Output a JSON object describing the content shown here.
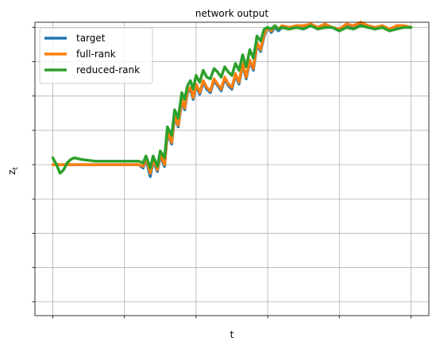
{
  "chart_data": {
    "type": "line",
    "title": "network output",
    "xlabel": "t",
    "ylabel": "z",
    "ylabel_subscript": "t",
    "grid": true,
    "legend_placement": "top-left",
    "xlim": [
      -0.25,
      5.25
    ],
    "ylim": [
      -4.4,
      4.15
    ],
    "xticks": [
      0,
      1,
      2,
      3,
      4,
      5
    ],
    "yticks": [
      -4,
      -3,
      -2,
      -1,
      0,
      1,
      2,
      3,
      4
    ],
    "series": [
      {
        "name": "target",
        "color": "#1f77b4",
        "x": [
          0,
          0.1,
          0.3,
          0.6,
          1.0,
          1.2,
          1.26,
          1.3,
          1.36,
          1.4,
          1.46,
          1.5,
          1.56,
          1.6,
          1.66,
          1.7,
          1.75,
          1.8,
          1.84,
          1.88,
          1.92,
          1.96,
          2.0,
          2.05,
          2.1,
          2.15,
          2.2,
          2.25,
          2.3,
          2.35,
          2.4,
          2.45,
          2.5,
          2.55,
          2.6,
          2.65,
          2.7,
          2.75,
          2.8,
          2.85,
          2.9,
          2.95,
          3.0,
          3.05,
          3.1,
          3.15,
          3.2,
          3.3,
          3.4,
          3.5,
          3.6,
          3.7,
          3.8,
          3.9,
          4.0,
          4.1,
          4.2,
          4.3,
          4.4,
          4.5,
          4.6,
          4.7,
          4.8,
          4.9,
          5.0
        ],
        "y": [
          0.0,
          0.0,
          0.0,
          0.0,
          0.0,
          0.0,
          -0.1,
          0.15,
          -0.35,
          0.1,
          -0.2,
          0.25,
          -0.05,
          0.9,
          0.6,
          1.4,
          1.1,
          1.85,
          1.6,
          2.1,
          2.2,
          1.9,
          2.3,
          2.05,
          2.4,
          2.2,
          2.1,
          2.45,
          2.3,
          2.15,
          2.5,
          2.3,
          2.2,
          2.6,
          2.35,
          2.9,
          2.5,
          3.0,
          2.75,
          3.5,
          3.3,
          3.75,
          4.0,
          3.85,
          4.0,
          3.9,
          4.0,
          3.95,
          4.05,
          4.0,
          4.1,
          3.95,
          4.05,
          4.0,
          3.9,
          4.05,
          4.0,
          4.1,
          4.05,
          3.95,
          4.05,
          3.9,
          4.0,
          4.05,
          4.0
        ]
      },
      {
        "name": "full-rank",
        "color": "#ff7f0e",
        "x": [
          0,
          0.1,
          0.3,
          0.6,
          1.0,
          1.2,
          1.26,
          1.3,
          1.36,
          1.4,
          1.46,
          1.5,
          1.56,
          1.6,
          1.66,
          1.7,
          1.75,
          1.8,
          1.84,
          1.88,
          1.92,
          1.96,
          2.0,
          2.05,
          2.1,
          2.15,
          2.2,
          2.25,
          2.3,
          2.35,
          2.4,
          2.45,
          2.5,
          2.55,
          2.6,
          2.65,
          2.7,
          2.75,
          2.8,
          2.85,
          2.9,
          2.95,
          3.0,
          3.05,
          3.1,
          3.15,
          3.2,
          3.3,
          3.4,
          3.5,
          3.6,
          3.7,
          3.8,
          3.9,
          4.0,
          4.1,
          4.2,
          4.3,
          4.4,
          4.5,
          4.6,
          4.7,
          4.8,
          4.9,
          5.0
        ],
        "y": [
          0.0,
          0.0,
          0.0,
          0.0,
          0.0,
          0.0,
          -0.05,
          0.2,
          -0.25,
          0.15,
          -0.15,
          0.3,
          0.0,
          0.95,
          0.65,
          1.45,
          1.15,
          1.9,
          1.65,
          2.15,
          2.25,
          1.95,
          2.35,
          2.1,
          2.45,
          2.25,
          2.15,
          2.5,
          2.35,
          2.2,
          2.55,
          2.35,
          2.25,
          2.65,
          2.4,
          2.95,
          2.55,
          3.05,
          2.8,
          3.55,
          3.35,
          3.8,
          4.0,
          3.9,
          4.05,
          3.95,
          4.05,
          4.0,
          4.05,
          4.05,
          4.1,
          4.0,
          4.1,
          4.0,
          3.95,
          4.1,
          4.05,
          4.15,
          4.05,
          4.0,
          4.05,
          3.95,
          4.05,
          4.05,
          4.0
        ]
      },
      {
        "name": "reduced-rank",
        "color": "#2ca02c",
        "x": [
          0,
          0.05,
          0.1,
          0.15,
          0.2,
          0.25,
          0.3,
          0.4,
          0.6,
          0.8,
          1.0,
          1.2,
          1.26,
          1.3,
          1.36,
          1.4,
          1.46,
          1.5,
          1.56,
          1.6,
          1.66,
          1.7,
          1.75,
          1.8,
          1.84,
          1.88,
          1.92,
          1.96,
          2.0,
          2.05,
          2.1,
          2.15,
          2.2,
          2.25,
          2.3,
          2.35,
          2.4,
          2.45,
          2.5,
          2.55,
          2.6,
          2.65,
          2.7,
          2.75,
          2.8,
          2.85,
          2.9,
          2.95,
          3.0,
          3.05,
          3.1,
          3.15,
          3.2,
          3.3,
          3.4,
          3.5,
          3.6,
          3.7,
          3.8,
          3.9,
          4.0,
          4.1,
          4.2,
          4.3,
          4.4,
          4.5,
          4.6,
          4.7,
          4.8,
          4.9,
          5.0
        ],
        "y": [
          0.2,
          0.0,
          -0.25,
          -0.15,
          0.05,
          0.15,
          0.2,
          0.15,
          0.1,
          0.1,
          0.1,
          0.1,
          0.05,
          0.25,
          -0.1,
          0.25,
          -0.05,
          0.4,
          0.2,
          1.1,
          0.85,
          1.6,
          1.35,
          2.1,
          1.9,
          2.3,
          2.45,
          2.2,
          2.6,
          2.4,
          2.75,
          2.55,
          2.5,
          2.8,
          2.7,
          2.55,
          2.85,
          2.7,
          2.6,
          2.95,
          2.75,
          3.2,
          2.85,
          3.35,
          3.1,
          3.75,
          3.6,
          3.95,
          4.0,
          3.95,
          4.05,
          3.95,
          4.0,
          3.95,
          4.0,
          3.95,
          4.05,
          3.95,
          4.0,
          4.0,
          3.9,
          4.0,
          3.95,
          4.05,
          4.0,
          3.95,
          4.0,
          3.9,
          3.95,
          4.0,
          4.0
        ]
      }
    ]
  }
}
